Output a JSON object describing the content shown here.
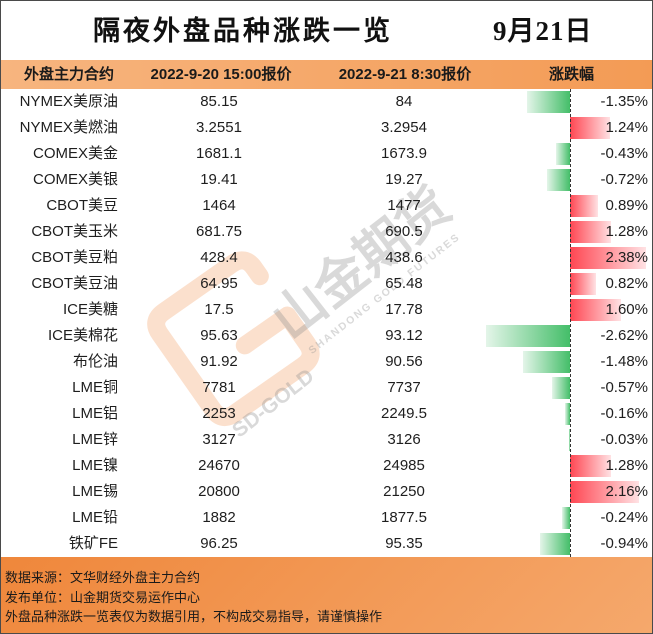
{
  "chart_data": {
    "type": "table",
    "title": "隔夜外盘品种涨跌一览",
    "date": "9月21日",
    "columns": [
      "外盘主力合约",
      "2022-9-20 15:00报价",
      "2022-9-21 8:30报价",
      "涨跌幅"
    ],
    "rows": [
      {
        "contract": "NYMEX美原油",
        "prev": 85.15,
        "curr": 84,
        "change": -1.35
      },
      {
        "contract": "NYMEX美燃油",
        "prev": 3.2551,
        "curr": 3.2954,
        "change": 1.24
      },
      {
        "contract": "COMEX美金",
        "prev": 1681.1,
        "curr": 1673.9,
        "change": -0.43
      },
      {
        "contract": "COMEX美银",
        "prev": 19.41,
        "curr": 19.27,
        "change": -0.72
      },
      {
        "contract": "CBOT美豆",
        "prev": 1464,
        "curr": 1477,
        "change": 0.89
      },
      {
        "contract": "CBOT美玉米",
        "prev": 681.75,
        "curr": 690.5,
        "change": 1.28
      },
      {
        "contract": "CBOT美豆粕",
        "prev": 428.4,
        "curr": 438.6,
        "change": 2.38
      },
      {
        "contract": "CBOT美豆油",
        "prev": 64.95,
        "curr": 65.48,
        "change": 0.82
      },
      {
        "contract": "ICE美糖",
        "prev": 17.5,
        "curr": 17.78,
        "change": 1.6
      },
      {
        "contract": "ICE美棉花",
        "prev": 95.63,
        "curr": 93.12,
        "change": -2.62
      },
      {
        "contract": "布伦油",
        "prev": 91.92,
        "curr": 90.56,
        "change": -1.48
      },
      {
        "contract": "LME铜",
        "prev": 7781,
        "curr": 7737,
        "change": -0.57
      },
      {
        "contract": "LME铝",
        "prev": 2253,
        "curr": 2249.5,
        "change": -0.16
      },
      {
        "contract": "LME锌",
        "prev": 3127,
        "curr": 3126,
        "change": -0.03
      },
      {
        "contract": "LME镍",
        "prev": 24670,
        "curr": 24985,
        "change": 1.28
      },
      {
        "contract": "LME锡",
        "prev": 20800,
        "curr": 21250,
        "change": 2.16
      },
      {
        "contract": "LME铅",
        "prev": 1882,
        "curr": 1877.5,
        "change": -0.24
      },
      {
        "contract": "铁矿FE",
        "prev": 96.25,
        "curr": 95.35,
        "change": -0.94
      }
    ]
  },
  "footer": {
    "source": "数据来源：文华财经外盘主力合约",
    "publisher": "发布单位：山金期货交易运作中心",
    "disclaimer": "外盘品种涨跌一览表仅为数据引用，不构成交易指导，请谨慎操作"
  },
  "watermark": {
    "brand": "山金期货",
    "brand_en": "SHANDONG GOLD FUTURES",
    "mark": "SD-GOLD",
    "logo_icon": "shandong-gold-logo-icon"
  },
  "colors": {
    "header_orange": "#f5a364",
    "footer_orange": "#f08b40",
    "bar_up_red": "#ff4652",
    "bar_down_green": "#44be69",
    "watermark_orange": "#ee7d2c"
  }
}
